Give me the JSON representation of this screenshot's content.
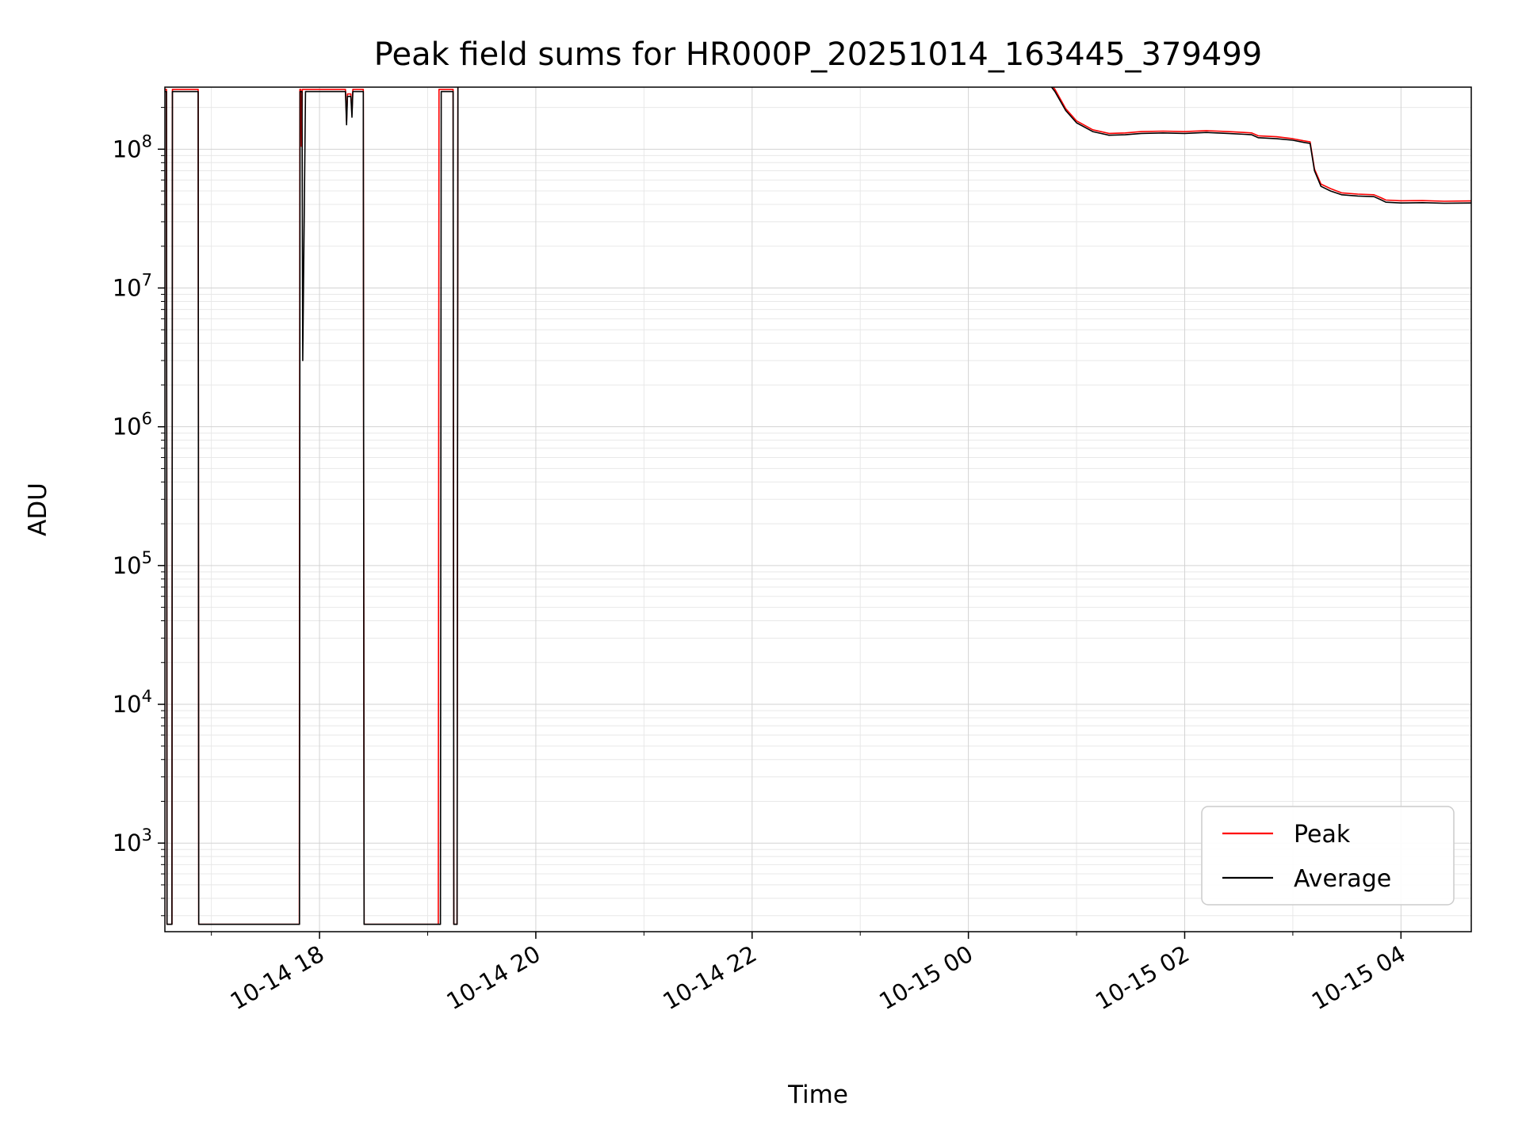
{
  "figure": {
    "title": "Peak field sums for HR000P_20251014_163445_379499",
    "xlabel": "Time",
    "ylabel": "ADU"
  },
  "chart_data": {
    "type": "line",
    "title": "Peak field sums for HR000P_20251014_163445_379499",
    "xlabel": "Time",
    "ylabel": "ADU",
    "y_scale": "log",
    "ylim": [
      230,
      280000000
    ],
    "x_unit": "hours after 2025-10-14 16:00",
    "xlim_hours": [
      0.57,
      12.65
    ],
    "grid": {
      "major": true,
      "minor": true
    },
    "legend": {
      "position": "lower right",
      "entries": [
        "Peak",
        "Average"
      ]
    },
    "x_ticks": [
      {
        "hours": 2,
        "label": "10-14 18"
      },
      {
        "hours": 4,
        "label": "10-14 20"
      },
      {
        "hours": 6,
        "label": "10-14 22"
      },
      {
        "hours": 8,
        "label": "10-15 00"
      },
      {
        "hours": 10,
        "label": "10-15 02"
      },
      {
        "hours": 12,
        "label": "10-15 04"
      }
    ],
    "y_ticks": [
      {
        "value": 1000,
        "exp": "3"
      },
      {
        "value": 10000,
        "exp": "4"
      },
      {
        "value": 100000,
        "exp": "5"
      },
      {
        "value": 1000000,
        "exp": "6"
      },
      {
        "value": 10000000,
        "exp": "7"
      },
      {
        "value": 100000000,
        "exp": "8"
      }
    ],
    "series": [
      {
        "name": "Peak",
        "color": "#ff0000",
        "points": [
          [
            0.57,
            270000000.0
          ],
          [
            0.585,
            270000000.0
          ],
          [
            0.59,
            260.0
          ],
          [
            0.635,
            260.0
          ],
          [
            0.64,
            270000000.0
          ],
          [
            0.878,
            270000000.0
          ],
          [
            0.883,
            260.0
          ],
          [
            1.813,
            260.0
          ],
          [
            1.818,
            270000000.0
          ],
          [
            1.826,
            270000000.0
          ],
          [
            1.832,
            105000000.0
          ],
          [
            1.84,
            270000000.0
          ],
          [
            2.24,
            270000000.0
          ],
          [
            2.25,
            160000000.0
          ],
          [
            2.258,
            250000000.0
          ],
          [
            2.29,
            250000000.0
          ],
          [
            2.3,
            180000000.0
          ],
          [
            2.308,
            270000000.0
          ],
          [
            2.405,
            270000000.0
          ],
          [
            2.412,
            260.0
          ],
          [
            3.098,
            260.0
          ],
          [
            3.105,
            270000000.0
          ],
          [
            3.235,
            270000000.0
          ],
          [
            3.242,
            260.0
          ],
          [
            3.272,
            260.0
          ],
          [
            3.28,
            340000000.0
          ],
          [
            8.7,
            340000000.0
          ],
          [
            8.8,
            270000000.0
          ],
          [
            8.9,
            196000000.0
          ],
          [
            9.0,
            160000000.0
          ],
          [
            9.15,
            138000000.0
          ],
          [
            9.3,
            130000000.0
          ],
          [
            9.45,
            131000000.0
          ],
          [
            9.6,
            134000000.0
          ],
          [
            9.8,
            135000000.0
          ],
          [
            10.0,
            134000000.0
          ],
          [
            10.2,
            136000000.0
          ],
          [
            10.4,
            134000000.0
          ],
          [
            10.55,
            132000000.0
          ],
          [
            10.62,
            131000000.0
          ],
          [
            10.68,
            125000000.0
          ],
          [
            10.85,
            123000000.0
          ],
          [
            11.0,
            119000000.0
          ],
          [
            11.1,
            115000000.0
          ],
          [
            11.16,
            113000000.0
          ],
          [
            11.2,
            72000000.0
          ],
          [
            11.26,
            56000000.0
          ],
          [
            11.35,
            52000000.0
          ],
          [
            11.45,
            48500000.0
          ],
          [
            11.6,
            47500000.0
          ],
          [
            11.75,
            47000000.0
          ],
          [
            11.82,
            44500000.0
          ],
          [
            11.86,
            43000000.0
          ],
          [
            12.0,
            42500000.0
          ],
          [
            12.2,
            42600000.0
          ],
          [
            12.4,
            42200000.0
          ],
          [
            12.65,
            42400000.0
          ]
        ]
      },
      {
        "name": "Average",
        "color": "#000000",
        "points": [
          [
            0.57,
            260000000.0
          ],
          [
            0.585,
            260000000.0
          ],
          [
            0.59,
            260.0
          ],
          [
            0.635,
            260.0
          ],
          [
            0.64,
            260000000.0
          ],
          [
            0.878,
            260000000.0
          ],
          [
            0.883,
            260.0
          ],
          [
            1.815,
            260.0
          ],
          [
            1.82,
            260000000.0
          ],
          [
            1.838,
            260000000.0
          ],
          [
            1.845,
            3000000.0
          ],
          [
            1.87,
            260000000.0
          ],
          [
            2.24,
            260000000.0
          ],
          [
            2.25,
            150000000.0
          ],
          [
            2.258,
            240000000.0
          ],
          [
            2.29,
            240000000.0
          ],
          [
            2.3,
            170000000.0
          ],
          [
            2.308,
            260000000.0
          ],
          [
            2.405,
            260000000.0
          ],
          [
            2.412,
            260.0
          ],
          [
            3.118,
            260.0
          ],
          [
            3.125,
            260000000.0
          ],
          [
            3.235,
            260000000.0
          ],
          [
            3.242,
            260.0
          ],
          [
            3.272,
            260.0
          ],
          [
            3.28,
            330000000.0
          ],
          [
            8.7,
            330000000.0
          ],
          [
            8.8,
            260000000.0
          ],
          [
            8.9,
            190000000.0
          ],
          [
            9.0,
            155000000.0
          ],
          [
            9.15,
            134000000.0
          ],
          [
            9.3,
            126000000.0
          ],
          [
            9.45,
            127000000.0
          ],
          [
            9.6,
            130000000.0
          ],
          [
            9.8,
            131000000.0
          ],
          [
            10.0,
            130000000.0
          ],
          [
            10.2,
            132000000.0
          ],
          [
            10.4,
            130000000.0
          ],
          [
            10.55,
            128000000.0
          ],
          [
            10.62,
            127000000.0
          ],
          [
            10.68,
            121000000.0
          ],
          [
            10.85,
            119000000.0
          ],
          [
            11.0,
            116000000.0
          ],
          [
            11.1,
            112000000.0
          ],
          [
            11.16,
            110000000.0
          ],
          [
            11.2,
            70000000.0
          ],
          [
            11.26,
            54000000.0
          ],
          [
            11.35,
            50000000.0
          ],
          [
            11.45,
            47000000.0
          ],
          [
            11.6,
            46000000.0
          ],
          [
            11.75,
            45500000.0
          ],
          [
            11.82,
            43000000.0
          ],
          [
            11.86,
            41500000.0
          ],
          [
            12.0,
            41000000.0
          ],
          [
            12.2,
            41200000.0
          ],
          [
            12.4,
            40800000.0
          ],
          [
            12.65,
            41000000.0
          ]
        ]
      }
    ]
  },
  "style": {
    "grid_major_color": "#d3d3d3",
    "grid_minor_color": "#e8e8e8",
    "spine_color": "#000000",
    "legend_border_color": "#cccccc"
  }
}
